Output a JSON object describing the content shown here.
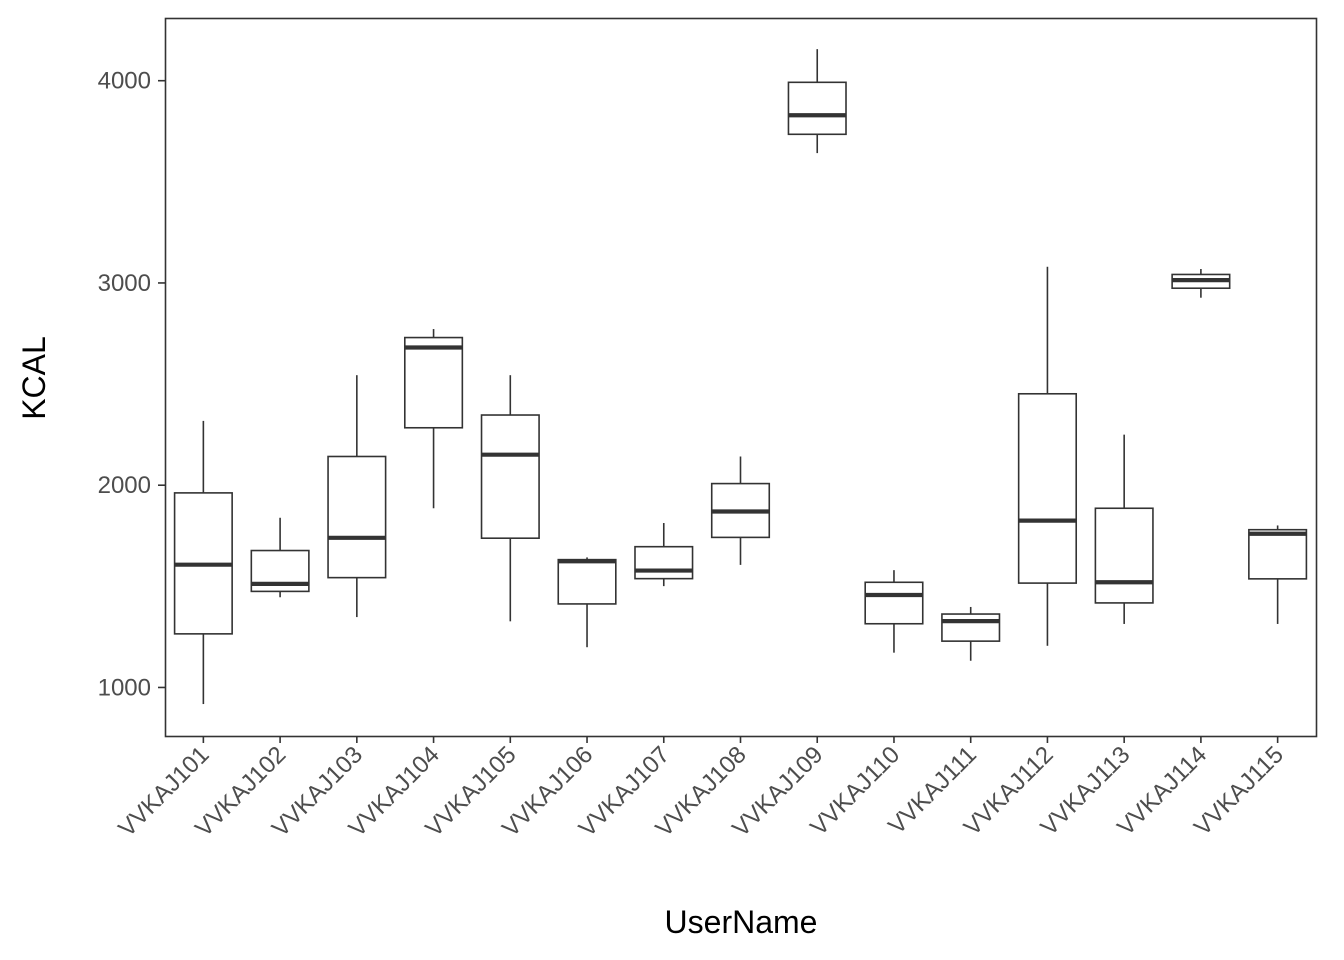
{
  "chart_data": {
    "type": "boxplot",
    "title": "",
    "xlabel": "UserName",
    "ylabel": "KCAL",
    "ylim": [
      760,
      4310
    ],
    "yticks": [
      1000,
      2000,
      3000,
      4000
    ],
    "grid": false,
    "legend": "none",
    "colors": {
      "box_fill": "#ffffff",
      "box_line": "#333333",
      "median_line": "#333333",
      "frame": "#333333",
      "tick_label": "#4d4d4d"
    },
    "categories": [
      "VVKAJ101",
      "VVKAJ102",
      "VVKAJ103",
      "VVKAJ104",
      "VVKAJ105",
      "VVKAJ106",
      "VVKAJ107",
      "VVKAJ108",
      "VVKAJ109",
      "VVKAJ110",
      "VVKAJ111",
      "VVKAJ112",
      "VVKAJ113",
      "VVKAJ114",
      "VVKAJ115"
    ],
    "boxes": [
      {
        "min": 918,
        "q1": 1265,
        "median": 1607,
        "q3": 1962,
        "max": 2318
      },
      {
        "min": 1446,
        "q1": 1475,
        "median": 1512,
        "q3": 1677,
        "max": 1839
      },
      {
        "min": 1348,
        "q1": 1543,
        "median": 1740,
        "q3": 2142,
        "max": 2544
      },
      {
        "min": 1886,
        "q1": 2284,
        "median": 2681,
        "q3": 2730,
        "max": 2772
      },
      {
        "min": 1327,
        "q1": 1738,
        "median": 2151,
        "q3": 2347,
        "max": 2544
      },
      {
        "min": 1199,
        "q1": 1413,
        "median": 1624,
        "q3": 1632,
        "max": 1643
      },
      {
        "min": 1501,
        "q1": 1538,
        "median": 1578,
        "q3": 1696,
        "max": 1813
      },
      {
        "min": 1606,
        "q1": 1742,
        "median": 1870,
        "q3": 2008,
        "max": 2142
      },
      {
        "min": 3642,
        "q1": 3735,
        "median": 3829,
        "q3": 3992,
        "max": 4156
      },
      {
        "min": 1172,
        "q1": 1315,
        "median": 1457,
        "q3": 1520,
        "max": 1580
      },
      {
        "min": 1132,
        "q1": 1229,
        "median": 1328,
        "q3": 1363,
        "max": 1398
      },
      {
        "min": 1206,
        "q1": 1516,
        "median": 1825,
        "q3": 2452,
        "max": 3080
      },
      {
        "min": 1314,
        "q1": 1418,
        "median": 1520,
        "q3": 1886,
        "max": 2250
      },
      {
        "min": 2927,
        "q1": 2974,
        "median": 3014,
        "q3": 3042,
        "max": 3069
      },
      {
        "min": 1314,
        "q1": 1537,
        "median": 1760,
        "q3": 1780,
        "max": 1801
      }
    ]
  }
}
